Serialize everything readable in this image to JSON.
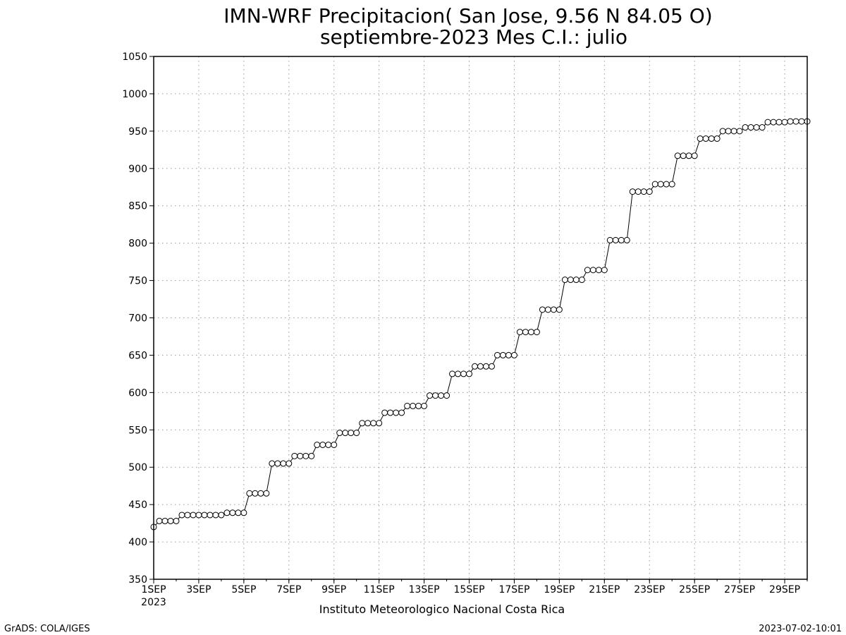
{
  "header": {
    "title": "IMN-WRF  Precipitacion( San Jose, 9.56  N 84.05  O)",
    "subtitle": "septiembre-2023 Mes C.I.: julio"
  },
  "footer": {
    "year_label": "2023",
    "credit": "Instituto Meteorologico Nacional Costa Rica",
    "grads": "GrADS: COLA/IGES",
    "timestamp": "2023-07-02-10:01"
  },
  "chart_data": {
    "type": "line",
    "title": "IMN-WRF  Precipitacion( San Jose, 9.56  N 84.05  O)",
    "subtitle": "septiembre-2023 Mes C.I.: julio",
    "xlabel": "",
    "ylabel": "",
    "x_range": [
      1,
      30
    ],
    "ylim": [
      350,
      1050
    ],
    "y_ticks": [
      350,
      400,
      450,
      500,
      550,
      600,
      650,
      700,
      750,
      800,
      850,
      900,
      950,
      1000,
      1050
    ],
    "x_ticks": [
      {
        "day": 1,
        "label": "1SEP"
      },
      {
        "day": 3,
        "label": "3SEP"
      },
      {
        "day": 5,
        "label": "5SEP"
      },
      {
        "day": 7,
        "label": "7SEP"
      },
      {
        "day": 9,
        "label": "9SEP"
      },
      {
        "day": 11,
        "label": "11SEP"
      },
      {
        "day": 13,
        "label": "13SEP"
      },
      {
        "day": 15,
        "label": "15SEP"
      },
      {
        "day": 17,
        "label": "17SEP"
      },
      {
        "day": 19,
        "label": "19SEP"
      },
      {
        "day": 21,
        "label": "21SEP"
      },
      {
        "day": 23,
        "label": "23SEP"
      },
      {
        "day": 25,
        "label": "25SEP"
      },
      {
        "day": 27,
        "label": "27SEP"
      },
      {
        "day": 29,
        "label": "29SEP"
      }
    ],
    "x_grid_days": [
      1,
      3,
      5,
      7,
      9,
      11,
      13,
      15,
      17,
      19,
      21,
      23,
      25,
      27,
      29
    ],
    "grid": true,
    "marker": "open-circle",
    "series": [
      {
        "values": [
          420,
          428,
          428,
          428,
          428,
          436,
          436,
          436,
          436,
          436,
          436,
          436,
          436,
          439,
          439,
          439,
          439,
          465,
          465,
          465,
          465,
          505,
          505,
          505,
          505,
          515,
          515,
          515,
          515,
          530,
          530,
          530,
          530,
          546,
          546,
          546,
          546,
          559,
          559,
          559,
          559,
          573,
          573,
          573,
          573,
          582,
          582,
          582,
          582,
          596,
          596,
          596,
          596,
          625,
          625,
          625,
          625,
          635,
          635,
          635,
          635,
          650,
          650,
          650,
          650,
          681,
          681,
          681,
          681,
          711,
          711,
          711,
          711,
          751,
          751,
          751,
          751,
          764,
          764,
          764,
          764,
          804,
          804,
          804,
          804,
          869,
          869,
          869,
          869,
          879,
          879,
          879,
          879,
          917,
          917,
          917,
          917,
          940,
          940,
          940,
          940,
          950,
          950,
          950,
          950,
          955,
          955,
          955,
          955,
          962,
          962,
          962,
          962,
          963,
          963,
          963,
          963
        ]
      }
    ]
  }
}
